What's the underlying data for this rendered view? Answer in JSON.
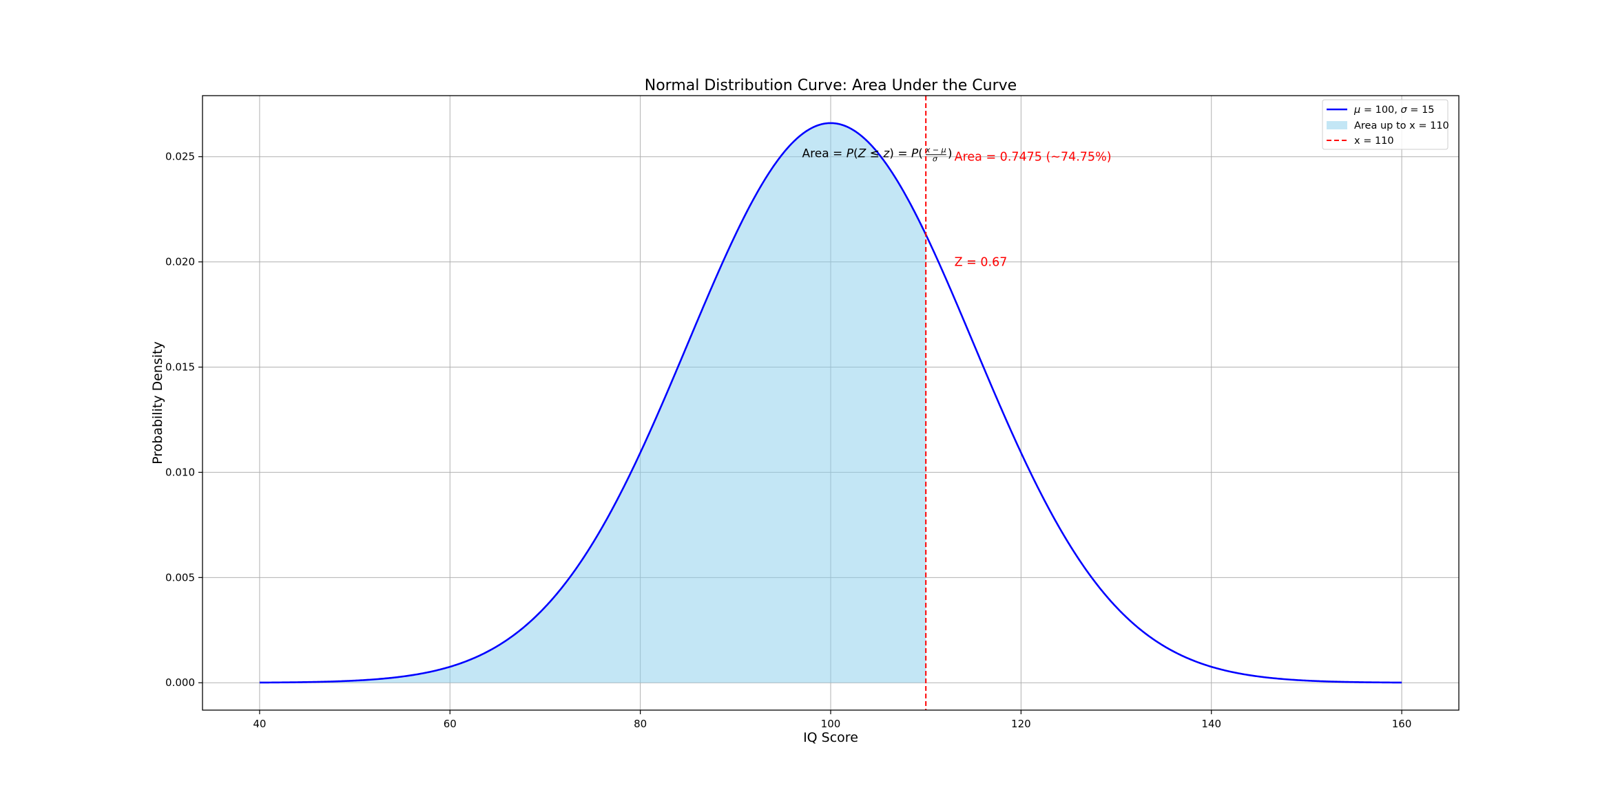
{
  "chart_data": {
    "type": "area",
    "title": "Normal Distribution Curve: Area Under the Curve",
    "xlabel": "IQ Score",
    "ylabel": "Probability Density",
    "xlim": [
      34,
      166
    ],
    "ylim": [
      -0.0013,
      0.0279
    ],
    "xticks": [
      40,
      60,
      80,
      100,
      120,
      140,
      160
    ],
    "xtick_labels": [
      "40",
      "60",
      "80",
      "100",
      "120",
      "140",
      "160"
    ],
    "yticks": [
      0.0,
      0.005,
      0.01,
      0.015,
      0.02,
      0.025
    ],
    "ytick_labels": [
      "0.000",
      "0.005",
      "0.010",
      "0.015",
      "0.020",
      "0.025"
    ],
    "grid": true,
    "distribution": {
      "mean": 100,
      "sd": 15,
      "x_range": [
        40,
        160
      ]
    },
    "series": [
      {
        "name": "μ = 100, σ = 15",
        "kind": "line",
        "color": "#0000ff"
      },
      {
        "name": "Area up to x = 110",
        "kind": "fill",
        "color": "#87ceeb",
        "x_from": 40,
        "x_to": 110
      },
      {
        "name": "x = 110",
        "kind": "vline",
        "color": "#ff0000",
        "x": 110
      }
    ],
    "legend": {
      "placement": "top-right",
      "entries": [
        {
          "label_math": "μ = 100, σ = 15",
          "style": "line",
          "color": "#0000ff"
        },
        {
          "label": "Area up to x = 110",
          "style": "patch",
          "color": "#87ceeb"
        },
        {
          "label": "x = 110",
          "style": "dashed",
          "color": "#ff0000"
        }
      ]
    },
    "annotations": [
      {
        "id": "area_value",
        "text": "Area = 0.7475 (~74.75%)",
        "x": 113,
        "y": 0.025,
        "color": "#ff0000"
      },
      {
        "id": "z_value",
        "text": "Z = 0.67",
        "x": 113,
        "y": 0.02,
        "color": "#ff0000"
      },
      {
        "id": "formula",
        "text": "Area = P(Z ≤ z) = P((x−μ)/σ)",
        "x": 97,
        "y": 0.025,
        "color": "#000000"
      }
    ]
  }
}
